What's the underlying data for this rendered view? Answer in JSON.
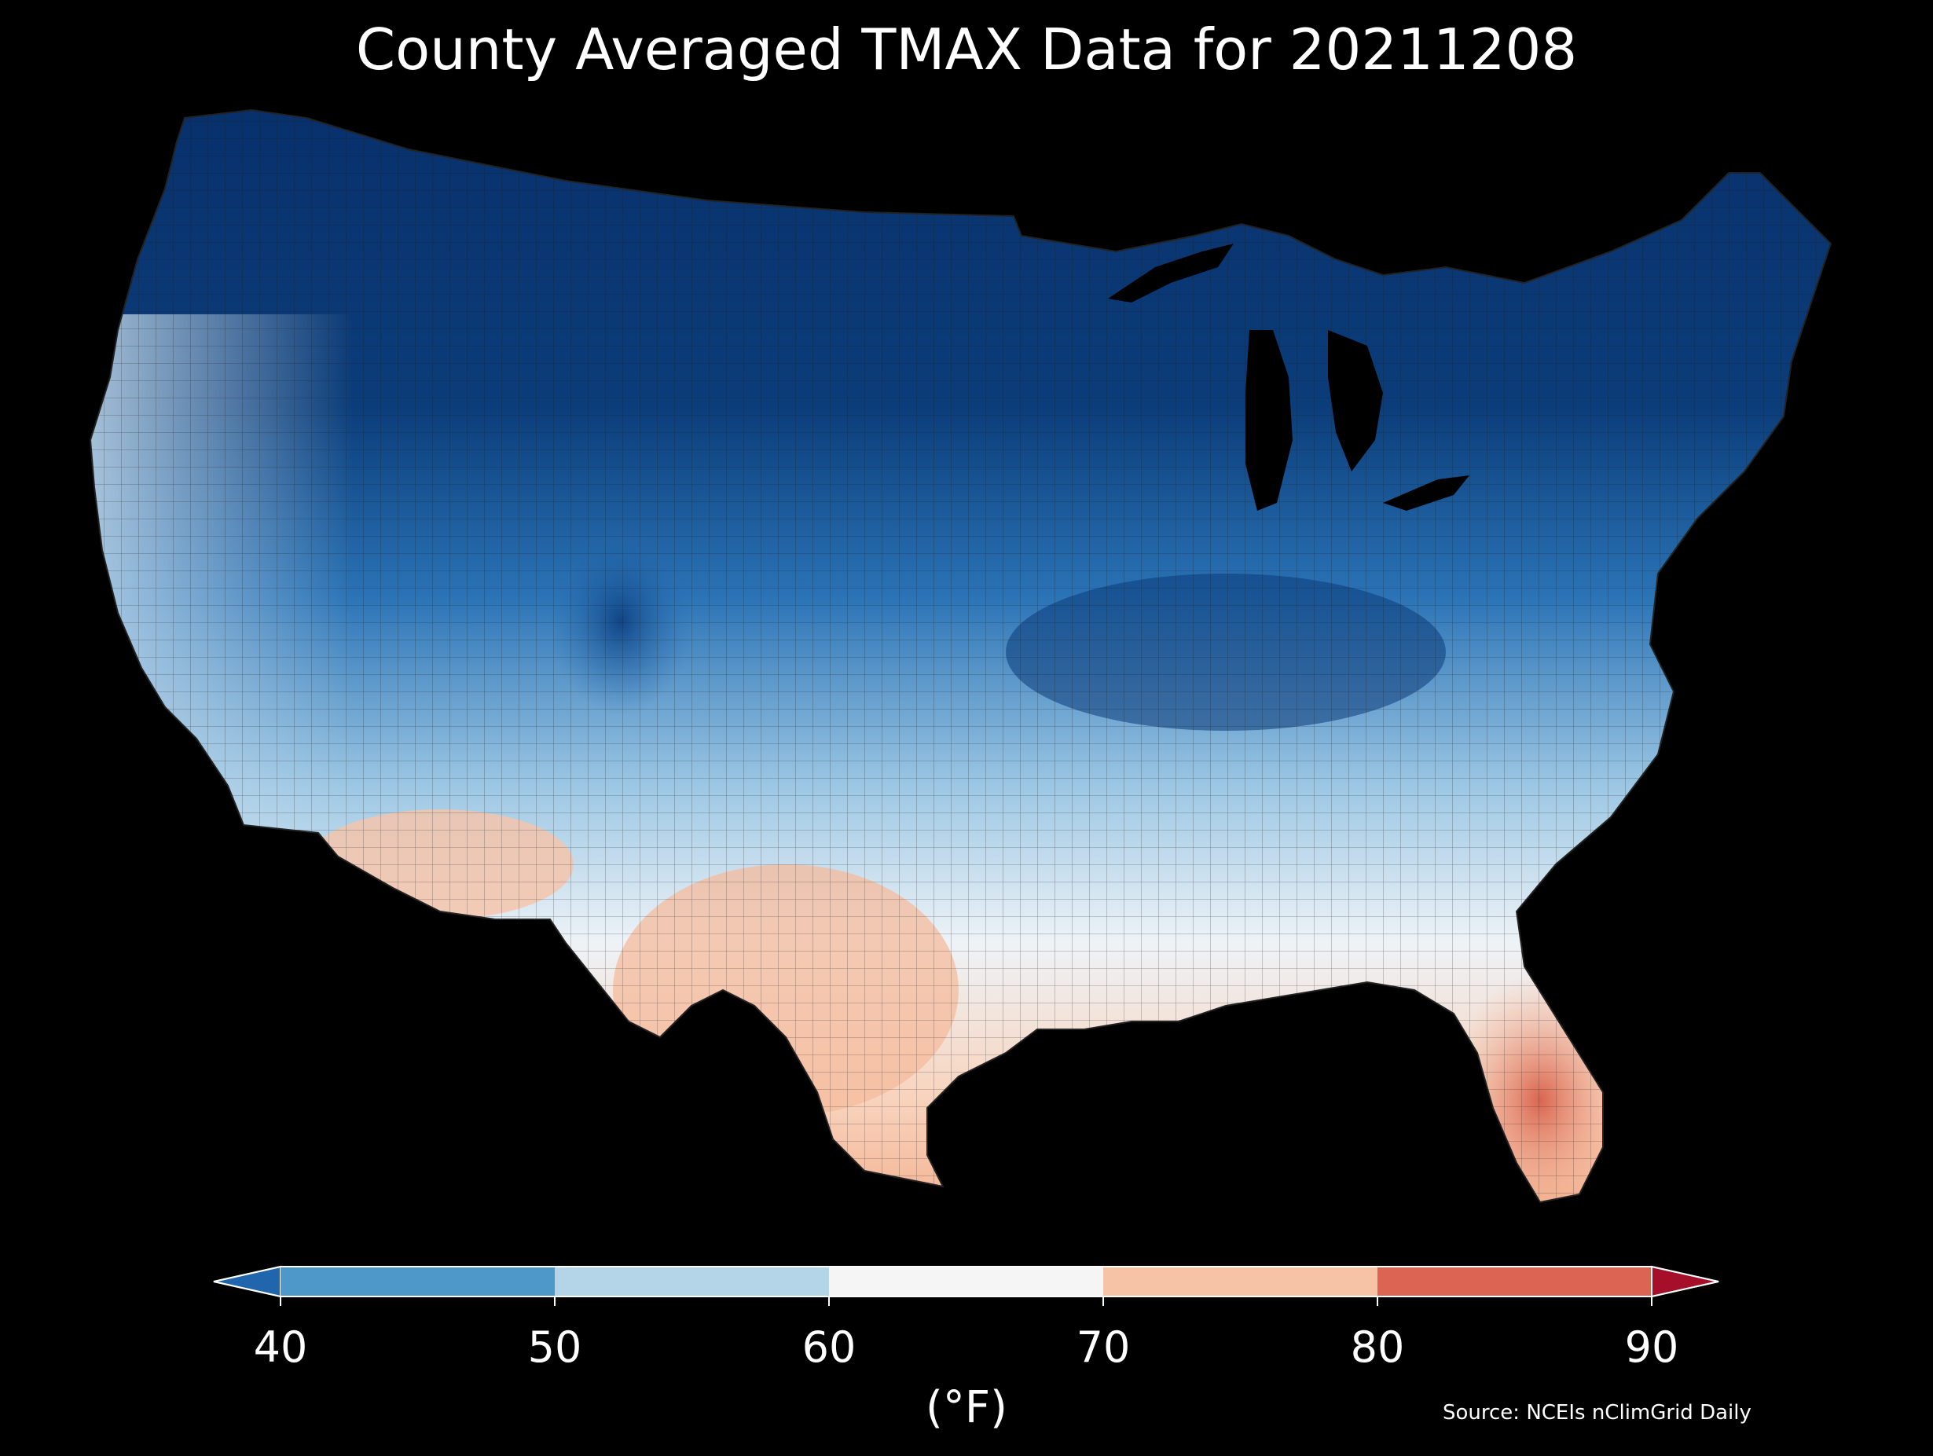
{
  "title": "County Averaged TMAX Data for 20211208",
  "source": "Source: NCEIs nClimGrid Daily",
  "map": {
    "region": "Contiguous United States",
    "variable": "TMAX",
    "date": "20211208",
    "unit_label": "(°F)",
    "background": "#000000",
    "county_borders": true,
    "border_color": "#1a1a1a",
    "gradient": "cold north-central and northeast, warmer toward the south; warmest in south Florida, south Texas and southern Arizona",
    "colors": {
      "extend_min": "#2166ac",
      "40-50": "#4d98c9",
      "50-60": "#b4d5e8",
      "60-70": "#f5f5f5",
      "70-80": "#f7c3a7",
      "80-90": "#db6552",
      "extend_max": "#a50f2a"
    }
  },
  "colorbar": {
    "ticks": [
      "40",
      "50",
      "60",
      "70",
      "80",
      "90"
    ],
    "extend": "both",
    "label": "(°F)"
  }
}
